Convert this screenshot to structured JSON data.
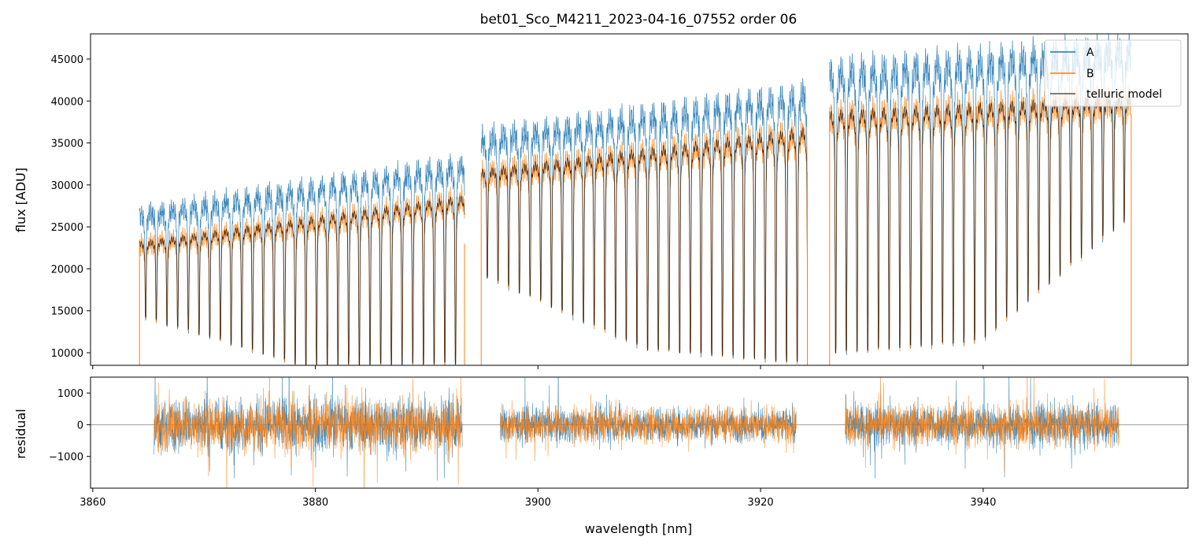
{
  "chart_data": [
    {
      "type": "line",
      "title": "bet01_Sco_M4211_2023-04-16_07552  order 06",
      "xlabel": "",
      "ylabel": "flux [ADU]",
      "xlim": [
        3859.8,
        3958.4
      ],
      "ylim": [
        8500,
        48000
      ],
      "yticks": [
        10000,
        15000,
        20000,
        25000,
        30000,
        35000,
        40000,
        45000
      ],
      "ytick_labels": [
        "10000",
        "15000",
        "20000",
        "25000",
        "30000",
        "35000",
        "40000",
        "45000"
      ],
      "xticks": [
        3860,
        3880,
        3900,
        3920,
        3940
      ],
      "grid": false,
      "legend_position": "top-right",
      "segments": [
        {
          "x_start": 3864.2,
          "x_end": 3893.4,
          "A_continuum_start": 26500,
          "A_continuum_end": 32500,
          "B_continuum_start": 23000,
          "B_continuum_end": 28500,
          "line_depth_start": 14500,
          "line_depth_mid": 8500,
          "line_depth_end": 8800
        },
        {
          "x_start": 3894.9,
          "x_end": 3924.2,
          "A_continuum_start": 35500,
          "A_continuum_end": 41000,
          "B_continuum_start": 31500,
          "B_continuum_end": 36500,
          "line_depth_start": 19500,
          "line_depth_mid": 10500,
          "line_depth_end": 8800
        },
        {
          "x_start": 3926.2,
          "x_end": 3953.3,
          "A_continuum_start": 43500,
          "A_continuum_end": 46200,
          "B_continuum_start": 38500,
          "B_continuum_end": 40200,
          "line_depth_start": 10000,
          "line_depth_mid": 11500,
          "line_depth_end": 26500
        }
      ],
      "series": [
        {
          "name": "A",
          "color": "#1f77b4"
        },
        {
          "name": "B",
          "color": "#ff7f0e"
        },
        {
          "name": "telluric model",
          "color": "#000000"
        }
      ]
    },
    {
      "type": "line",
      "title": "",
      "xlabel": "wavelength [nm]",
      "ylabel": "residual",
      "xlim": [
        3859.8,
        3958.4
      ],
      "ylim": [
        -2000,
        1500
      ],
      "yticks": [
        -1000,
        0,
        1000
      ],
      "ytick_labels": [
        "−1000",
        "0",
        "1000"
      ],
      "xticks": [
        3860,
        3880,
        3900,
        3920,
        3940
      ],
      "xtick_labels": [
        "3860",
        "3880",
        "3900",
        "3920",
        "3940"
      ],
      "reference_line": 0,
      "segments": [
        {
          "x_start": 3865.5,
          "x_end": 3893.2,
          "amplitude": 1100
        },
        {
          "x_start": 3896.6,
          "x_end": 3923.2,
          "amplitude": 700
        },
        {
          "x_start": 3927.6,
          "x_end": 3952.2,
          "amplitude": 850
        }
      ],
      "series": [
        {
          "name": "A",
          "color": "#1f77b4"
        },
        {
          "name": "B",
          "color": "#ff7f0e"
        }
      ]
    }
  ]
}
